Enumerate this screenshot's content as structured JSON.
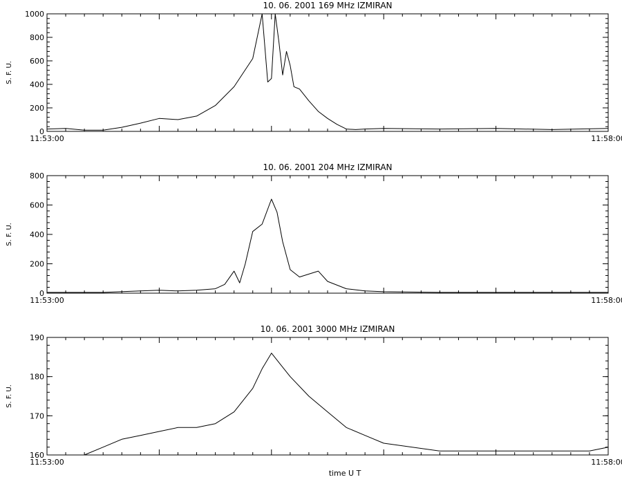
{
  "chart_data": [
    {
      "type": "line",
      "title": "10. 06. 2001    169 MHz    IZMIRAN",
      "ylabel": "S. F. U.",
      "xlabel": "",
      "ylim": [
        0,
        1000
      ],
      "yticks": [
        0,
        200,
        400,
        600,
        800,
        1000
      ],
      "xlim": [
        "11:53:00",
        "11:58:00"
      ],
      "xtick_labels": [
        "11:53:00",
        "11:58:00"
      ],
      "series": [
        {
          "x": [
            "11:53:00",
            "11:53:10",
            "11:53:20",
            "11:53:30",
            "11:53:40",
            "11:53:50",
            "11:54:00",
            "11:54:10",
            "11:54:20",
            "11:54:30",
            "11:54:40",
            "11:54:45",
            "11:54:50",
            "11:54:55",
            "11:54:58",
            "11:55:00",
            "11:55:02",
            "11:55:04",
            "11:55:06",
            "11:55:08",
            "11:55:10",
            "11:55:12",
            "11:55:15",
            "11:55:20",
            "11:55:25",
            "11:55:30",
            "11:55:35",
            "11:55:40",
            "11:55:45",
            "11:55:50",
            "11:56:00",
            "11:56:30",
            "11:57:00",
            "11:57:30",
            "11:58:00"
          ],
          "values": [
            20,
            25,
            10,
            10,
            35,
            70,
            110,
            100,
            130,
            220,
            380,
            500,
            620,
            1000,
            420,
            450,
            1000,
            760,
            480,
            680,
            560,
            380,
            360,
            260,
            170,
            110,
            60,
            20,
            15,
            20,
            25,
            20,
            25,
            15,
            25
          ]
        }
      ]
    },
    {
      "type": "line",
      "title": "10. 06. 2001    204 MHz    IZMIRAN",
      "ylabel": "S. F. U.",
      "xlabel": "",
      "ylim": [
        0,
        800
      ],
      "yticks": [
        0,
        200,
        400,
        600,
        800
      ],
      "xlim": [
        "11:53:00",
        "11:58:00"
      ],
      "xtick_labels": [
        "11:53:00",
        "11:58:00"
      ],
      "series": [
        {
          "x": [
            "11:53:00",
            "11:53:30",
            "11:53:50",
            "11:54:00",
            "11:54:10",
            "11:54:20",
            "11:54:30",
            "11:54:35",
            "11:54:40",
            "11:54:43",
            "11:54:46",
            "11:54:50",
            "11:54:55",
            "11:55:00",
            "11:55:03",
            "11:55:06",
            "11:55:10",
            "11:55:15",
            "11:55:20",
            "11:55:25",
            "11:55:30",
            "11:55:40",
            "11:55:50",
            "11:56:00",
            "11:56:30",
            "11:57:00",
            "11:57:30",
            "11:58:00"
          ],
          "values": [
            5,
            5,
            15,
            20,
            15,
            20,
            30,
            60,
            150,
            70,
            200,
            420,
            470,
            640,
            550,
            350,
            160,
            110,
            130,
            150,
            80,
            30,
            15,
            10,
            5,
            5,
            5,
            5
          ]
        }
      ]
    },
    {
      "type": "line",
      "title": "10. 06. 2001    3000 MHz    IZMIRAN",
      "ylabel": "S. F. U.",
      "xlabel": "time  U T",
      "ylim": [
        160,
        190
      ],
      "yticks": [
        160,
        170,
        180,
        190
      ],
      "xlim": [
        "11:53:00",
        "11:58:00"
      ],
      "xtick_labels": [
        "11:53:00",
        "11:58:00"
      ],
      "series": [
        {
          "x": [
            "11:53:00",
            "11:53:20",
            "11:53:30",
            "11:53:40",
            "11:53:50",
            "11:54:00",
            "11:54:10",
            "11:54:20",
            "11:54:30",
            "11:54:40",
            "11:54:50",
            "11:54:55",
            "11:55:00",
            "11:55:05",
            "11:55:10",
            "11:55:20",
            "11:55:30",
            "11:55:40",
            "11:55:50",
            "11:56:00",
            "11:56:30",
            "11:57:00",
            "11:57:30",
            "11:57:50",
            "11:58:00"
          ],
          "values": [
            160,
            160,
            162,
            164,
            165,
            166,
            167,
            167,
            168,
            171,
            177,
            182,
            186,
            183,
            180,
            175,
            171,
            167,
            165,
            163,
            161,
            161,
            161,
            161,
            162
          ]
        }
      ]
    }
  ]
}
